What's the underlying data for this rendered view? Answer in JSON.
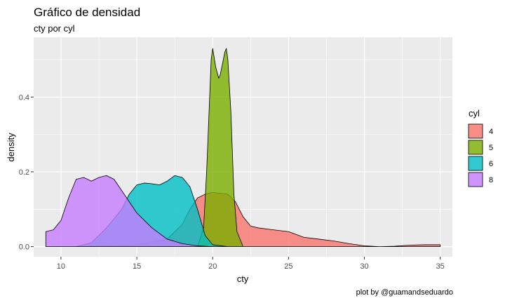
{
  "chart_data": {
    "type": "area",
    "title": "Gráfico de densidad",
    "subtitle": "cty por cyl",
    "xlabel": "cty",
    "ylabel": "density",
    "caption": "plot by @guamandseduardo",
    "xlim": [
      8.2,
      35.8
    ],
    "ylim": [
      -0.027,
      0.56
    ],
    "x_ticks": [
      10,
      15,
      20,
      25,
      30,
      35
    ],
    "y_ticks": [
      0.0,
      0.2,
      0.4
    ],
    "y_tick_labels": [
      "0.0",
      "0.2",
      "0.4"
    ],
    "grid": true,
    "legend": {
      "title": "cyl",
      "position": "right"
    },
    "fill_opacity": 0.8,
    "series": [
      {
        "name": "4",
        "color": "#F8766D",
        "x": [
          11,
          15,
          17,
          18,
          18.5,
          19,
          19.5,
          20,
          21,
          21.5,
          22,
          22.5,
          23,
          24,
          25,
          26,
          27,
          28,
          29,
          30,
          31,
          32,
          33,
          34,
          35
        ],
        "y": [
          0.0,
          0.005,
          0.02,
          0.06,
          0.1,
          0.13,
          0.14,
          0.145,
          0.14,
          0.12,
          0.08,
          0.055,
          0.05,
          0.045,
          0.04,
          0.025,
          0.02,
          0.015,
          0.008,
          0.002,
          0.0,
          0.001,
          0.004,
          0.005,
          0.005
        ]
      },
      {
        "name": "5",
        "color": "#7CAE00",
        "x": [
          19,
          19.4,
          19.6,
          19.8,
          19.9,
          20.0,
          20.2,
          20.4,
          20.5,
          20.6,
          20.8,
          20.9,
          21.0,
          21.2,
          21.4,
          21.6,
          22.0
        ],
        "y": [
          0.0,
          0.05,
          0.2,
          0.4,
          0.5,
          0.53,
          0.48,
          0.45,
          0.46,
          0.48,
          0.52,
          0.53,
          0.5,
          0.36,
          0.14,
          0.04,
          0.0
        ]
      },
      {
        "name": "6",
        "color": "#00BFC4",
        "x": [
          11,
          12,
          13,
          14,
          14.5,
          15,
          15.5,
          16,
          16.5,
          17,
          17.5,
          18,
          18.5,
          19,
          19.5,
          20,
          21
        ],
        "y": [
          0.0,
          0.01,
          0.05,
          0.1,
          0.14,
          0.165,
          0.17,
          0.168,
          0.165,
          0.175,
          0.19,
          0.185,
          0.16,
          0.1,
          0.03,
          0.005,
          0.0
        ]
      },
      {
        "name": "8",
        "color": "#C77CFF",
        "x": [
          9,
          9.5,
          10,
          10.5,
          11,
          11.5,
          12,
          12.5,
          13,
          13.5,
          14,
          15,
          16,
          17,
          18,
          19,
          20
        ],
        "y": [
          0.04,
          0.045,
          0.07,
          0.13,
          0.18,
          0.185,
          0.175,
          0.185,
          0.19,
          0.18,
          0.15,
          0.09,
          0.05,
          0.02,
          0.008,
          0.002,
          0.0
        ]
      }
    ]
  }
}
